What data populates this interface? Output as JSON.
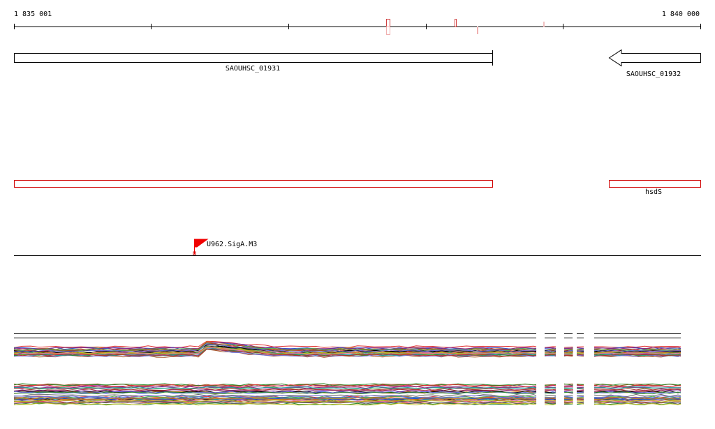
{
  "ruler": {
    "start_label": "1 835 001",
    "end_label": "1 840 000"
  },
  "genes": [
    {
      "label": "SAOUHSC_01931"
    },
    {
      "label": "SAOUHSC_01932"
    }
  ],
  "features": [
    {
      "label": "hsdS"
    }
  ],
  "sites": [
    {
      "label": "U962.SigA.M3"
    }
  ]
}
